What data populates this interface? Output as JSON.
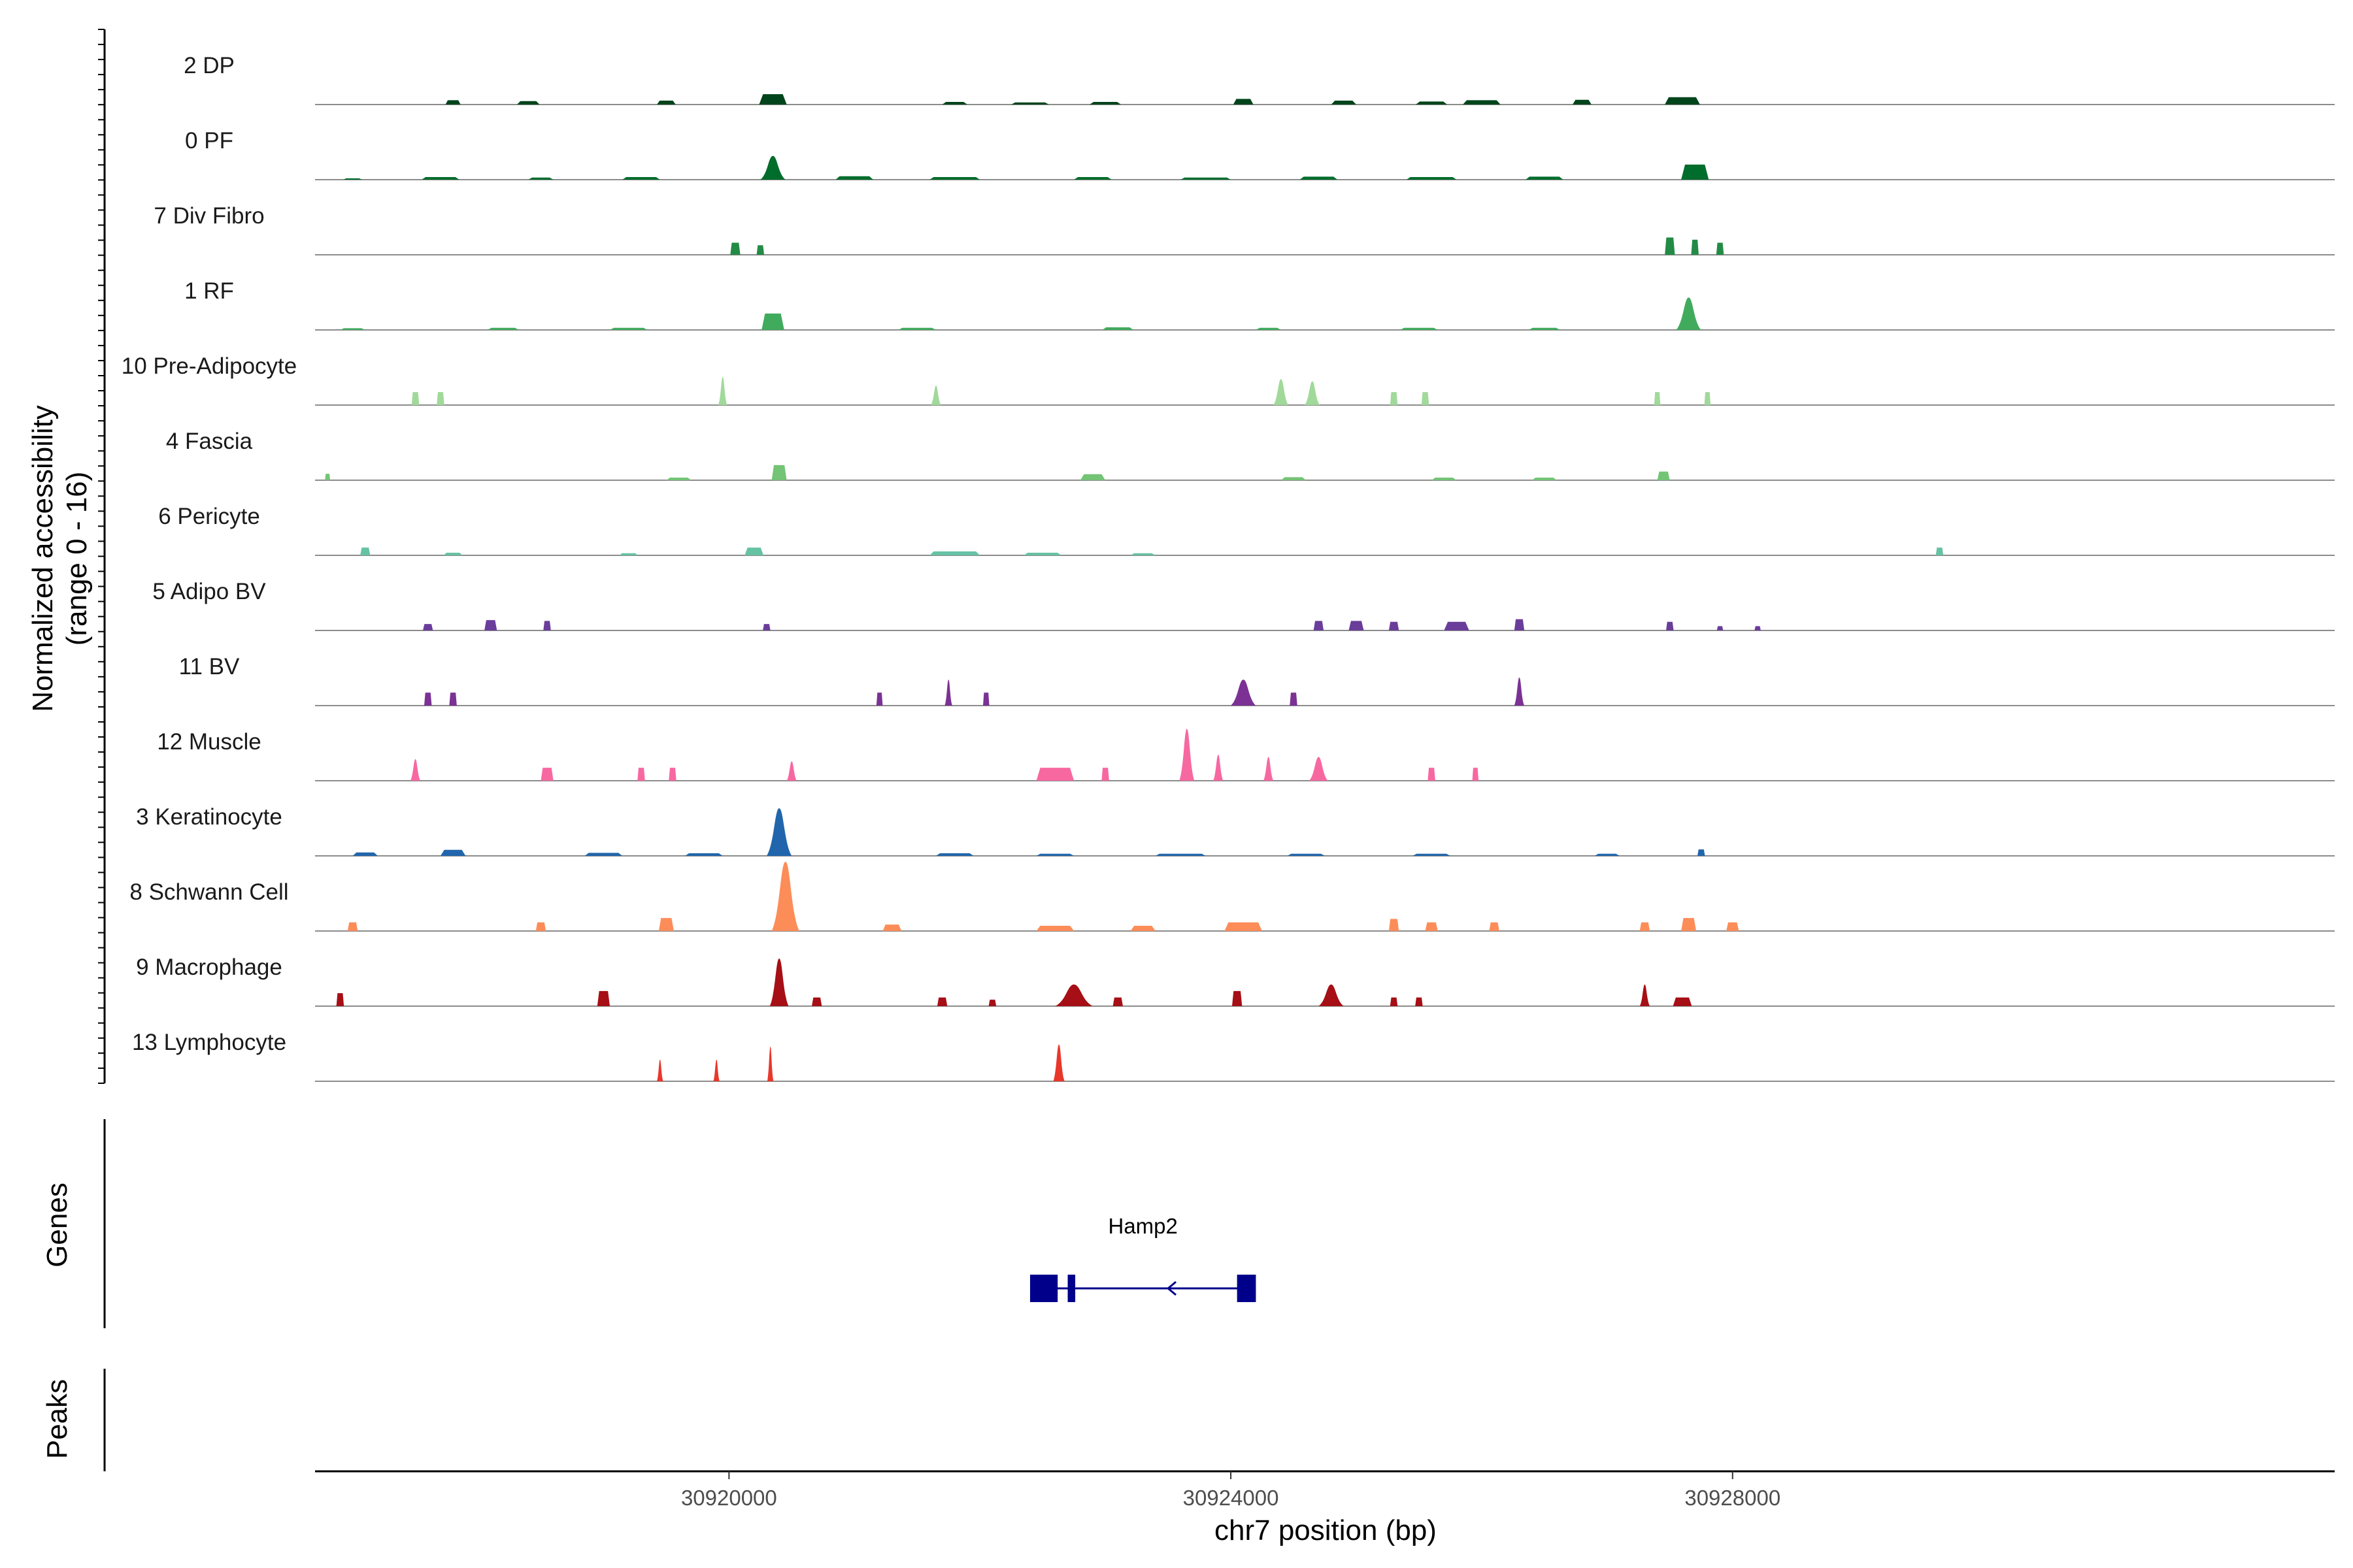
{
  "chart_data": {
    "type": "area",
    "title": "",
    "xlabel": "chr7 position (bp)",
    "ylabel": "Normalized accessibility",
    "ylabel_range": "(range 0 - 16)",
    "xlim": [
      30916700,
      30932800
    ],
    "ylim": [
      0,
      16
    ],
    "x_ticks": [
      30920000,
      30924000,
      30928000
    ],
    "x_tick_labels": [
      "30920000",
      "30924000",
      "30928000"
    ],
    "genes_label": "Genes",
    "peaks_label": "Peaks",
    "tracks": [
      {
        "name": "2 DP",
        "color": "#00441b",
        "peaks": [
          [
            30917800,
            120,
            1.0
          ],
          [
            30918400,
            180,
            0.8
          ],
          [
            30919500,
            150,
            0.9
          ],
          [
            30920350,
            220,
            2.4
          ],
          [
            30921800,
            200,
            0.6
          ],
          [
            30922400,
            300,
            0.5
          ],
          [
            30923000,
            250,
            0.6
          ],
          [
            30924100,
            160,
            1.3
          ],
          [
            30924900,
            200,
            0.9
          ],
          [
            30925600,
            250,
            0.7
          ],
          [
            30926000,
            300,
            1.0
          ],
          [
            30926800,
            150,
            1.1
          ],
          [
            30927600,
            280,
            1.7
          ]
        ]
      },
      {
        "name": "0 PF",
        "color": "#006d2c",
        "peaks": [
          [
            30917000,
            150,
            0.3
          ],
          [
            30917700,
            300,
            0.6
          ],
          [
            30918500,
            200,
            0.5
          ],
          [
            30919300,
            300,
            0.6
          ],
          [
            30920350,
            200,
            5.5
          ],
          [
            30921000,
            300,
            0.8
          ],
          [
            30921800,
            400,
            0.6
          ],
          [
            30922900,
            300,
            0.6
          ],
          [
            30923800,
            400,
            0.5
          ],
          [
            30924700,
            300,
            0.7
          ],
          [
            30925600,
            400,
            0.6
          ],
          [
            30926500,
            300,
            0.7
          ],
          [
            30927700,
            220,
            3.5
          ]
        ]
      },
      {
        "name": "7 Div Fibro",
        "color": "#238b45",
        "peaks": [
          [
            30920050,
            80,
            2.8
          ],
          [
            30920250,
            60,
            2.2
          ],
          [
            30927500,
            80,
            4.0
          ],
          [
            30927700,
            60,
            3.5
          ],
          [
            30927900,
            60,
            2.8
          ]
        ]
      },
      {
        "name": "1 RF",
        "color": "#41ab5d",
        "peaks": [
          [
            30917000,
            200,
            0.4
          ],
          [
            30918200,
            250,
            0.5
          ],
          [
            30919200,
            300,
            0.5
          ],
          [
            30920350,
            180,
            3.8
          ],
          [
            30921500,
            300,
            0.5
          ],
          [
            30923100,
            250,
            0.6
          ],
          [
            30924300,
            200,
            0.5
          ],
          [
            30925500,
            300,
            0.5
          ],
          [
            30926500,
            250,
            0.5
          ],
          [
            30927650,
            200,
            7.5
          ]
        ]
      },
      {
        "name": "10 Pre-Adipocyte",
        "color": "#a1d99b",
        "peaks": [
          [
            30917500,
            60,
            3.0
          ],
          [
            30917700,
            60,
            3.0
          ],
          [
            30919950,
            70,
            6.5
          ],
          [
            30921650,
            80,
            4.5
          ],
          [
            30924400,
            120,
            6.0
          ],
          [
            30924650,
            120,
            5.5
          ],
          [
            30925300,
            60,
            3.0
          ],
          [
            30925550,
            60,
            3.0
          ],
          [
            30927400,
            50,
            3.0
          ],
          [
            30927800,
            50,
            3.0
          ]
        ]
      },
      {
        "name": "4 Fascia",
        "color": "#74c476",
        "peaks": [
          [
            30916800,
            40,
            1.5
          ],
          [
            30919600,
            200,
            0.6
          ],
          [
            30920400,
            120,
            3.5
          ],
          [
            30922900,
            200,
            1.4
          ],
          [
            30924500,
            200,
            0.7
          ],
          [
            30925700,
            200,
            0.6
          ],
          [
            30926500,
            200,
            0.6
          ],
          [
            30927450,
            100,
            2.0
          ]
        ]
      },
      {
        "name": "6 Pericyte",
        "color": "#66c2a4",
        "peaks": [
          [
            30917100,
            80,
            1.8
          ],
          [
            30917800,
            150,
            0.6
          ],
          [
            30919200,
            150,
            0.5
          ],
          [
            30920200,
            150,
            1.8
          ],
          [
            30921800,
            400,
            0.9
          ],
          [
            30922500,
            300,
            0.6
          ],
          [
            30923300,
            200,
            0.5
          ],
          [
            30929650,
            60,
            1.8
          ]
        ]
      },
      {
        "name": "5 Adipo BV",
        "color": "#6a3d9a",
        "peaks": [
          [
            30917600,
            80,
            1.5
          ],
          [
            30918100,
            100,
            2.4
          ],
          [
            30918550,
            60,
            2.2
          ],
          [
            30920300,
            60,
            1.5
          ],
          [
            30924700,
            80,
            2.2
          ],
          [
            30925000,
            120,
            2.2
          ],
          [
            30925300,
            80,
            2.0
          ],
          [
            30925800,
            200,
            2.0
          ],
          [
            30926300,
            80,
            2.6
          ],
          [
            30927500,
            60,
            2.0
          ],
          [
            30927900,
            50,
            1.0
          ],
          [
            30928200,
            50,
            1.0
          ]
        ]
      },
      {
        "name": "11 BV",
        "color": "#7b3294",
        "peaks": [
          [
            30917600,
            60,
            3.0
          ],
          [
            30917800,
            60,
            3.0
          ],
          [
            30921200,
            50,
            3.0
          ],
          [
            30921750,
            60,
            6.0
          ],
          [
            30922050,
            50,
            3.0
          ],
          [
            30924100,
            200,
            6.0
          ],
          [
            30924500,
            60,
            3.0
          ],
          [
            30926300,
            80,
            6.5
          ]
        ]
      },
      {
        "name": "12 Muscle",
        "color": "#f768a1",
        "peaks": [
          [
            30917500,
            80,
            5.0
          ],
          [
            30918550,
            100,
            3.0
          ],
          [
            30919300,
            60,
            3.0
          ],
          [
            30919550,
            60,
            3.0
          ],
          [
            30920500,
            80,
            4.5
          ],
          [
            30922600,
            300,
            3.0
          ],
          [
            30923000,
            60,
            3.0
          ],
          [
            30923650,
            120,
            12.0
          ],
          [
            30923900,
            80,
            6.0
          ],
          [
            30924300,
            80,
            5.5
          ],
          [
            30924700,
            150,
            5.5
          ],
          [
            30925600,
            60,
            3.0
          ],
          [
            30925950,
            50,
            3.0
          ]
        ]
      },
      {
        "name": "3 Keratinocyte",
        "color": "#2166ac",
        "peaks": [
          [
            30917100,
            200,
            0.8
          ],
          [
            30917800,
            200,
            1.4
          ],
          [
            30919000,
            300,
            0.7
          ],
          [
            30919800,
            300,
            0.6
          ],
          [
            30920400,
            200,
            11.0
          ],
          [
            30921800,
            300,
            0.6
          ],
          [
            30922600,
            300,
            0.5
          ],
          [
            30923600,
            400,
            0.5
          ],
          [
            30924600,
            300,
            0.5
          ],
          [
            30925600,
            300,
            0.5
          ],
          [
            30927000,
            200,
            0.5
          ],
          [
            30927750,
            60,
            1.5
          ]
        ]
      },
      {
        "name": "8 Schwann Cell",
        "color": "#fc8d59",
        "peaks": [
          [
            30917000,
            80,
            2.0
          ],
          [
            30918500,
            80,
            2.0
          ],
          [
            30919500,
            120,
            3.0
          ],
          [
            30920450,
            220,
            16.0
          ],
          [
            30921300,
            150,
            1.5
          ],
          [
            30922600,
            300,
            1.2
          ],
          [
            30923300,
            200,
            1.2
          ],
          [
            30924100,
            300,
            2.0
          ],
          [
            30925300,
            80,
            2.8
          ],
          [
            30925600,
            100,
            2.0
          ],
          [
            30926100,
            80,
            2.0
          ],
          [
            30927300,
            80,
            2.0
          ],
          [
            30927650,
            120,
            3.0
          ],
          [
            30928000,
            100,
            2.0
          ]
        ]
      },
      {
        "name": "9 Macrophage",
        "color": "#a50f15",
        "peaks": [
          [
            30916900,
            60,
            3.0
          ],
          [
            30919000,
            100,
            3.5
          ],
          [
            30920400,
            150,
            11.0
          ],
          [
            30920700,
            80,
            2.0
          ],
          [
            30921700,
            80,
            2.0
          ],
          [
            30922100,
            60,
            1.5
          ],
          [
            30922750,
            300,
            5.0
          ],
          [
            30923100,
            80,
            2.0
          ],
          [
            30924050,
            80,
            3.5
          ],
          [
            30924800,
            200,
            5.0
          ],
          [
            30925300,
            60,
            2.0
          ],
          [
            30925500,
            60,
            2.0
          ],
          [
            30927300,
            80,
            5.0
          ],
          [
            30927600,
            150,
            2.0
          ]
        ]
      },
      {
        "name": "13 Lymphocyte",
        "color": "#e9372b",
        "peaks": [
          [
            30919450,
            50,
            5.0
          ],
          [
            30919900,
            50,
            5.0
          ],
          [
            30920330,
            50,
            8.0
          ],
          [
            30922630,
            90,
            8.5
          ]
        ]
      }
    ],
    "gene": {
      "name": "Hamp2",
      "start": 30922400,
      "end": 30924200,
      "strand": "-",
      "exons": [
        [
          30922400,
          30922620
        ],
        [
          30922700,
          30922760
        ],
        [
          30924050,
          30924200
        ]
      ]
    }
  }
}
